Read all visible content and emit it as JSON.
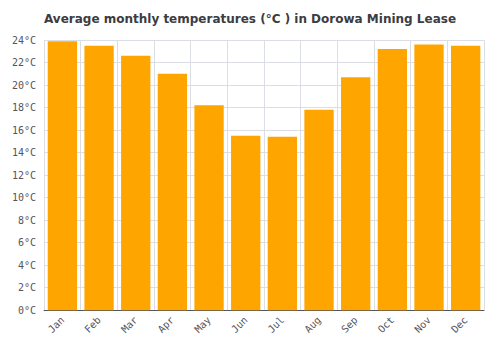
{
  "chart_data": {
    "type": "bar",
    "title": "Average monthly temperatures (°C ) in Dorowa Mining Lease",
    "categories": [
      "Jan",
      "Feb",
      "Mar",
      "Apr",
      "May",
      "Jun",
      "Jul",
      "Aug",
      "Sep",
      "Oct",
      "Nov",
      "Dec"
    ],
    "values": [
      23.9,
      23.5,
      22.6,
      21.0,
      18.2,
      15.5,
      15.4,
      17.8,
      20.7,
      23.2,
      23.6,
      23.5
    ],
    "color": "#FFA500",
    "ylim": [
      0,
      24
    ],
    "yticks": [
      {
        "value": 0,
        "label": "0°C"
      },
      {
        "value": 2,
        "label": "2°C"
      },
      {
        "value": 4,
        "label": "4°C"
      },
      {
        "value": 6,
        "label": "6°C"
      },
      {
        "value": 8,
        "label": "8°C"
      },
      {
        "value": 10,
        "label": "10°C"
      },
      {
        "value": 12,
        "label": "12°C"
      },
      {
        "value": 14,
        "label": "14°C"
      },
      {
        "value": 16,
        "label": "16°C"
      },
      {
        "value": 18,
        "label": "18°C"
      },
      {
        "value": 20,
        "label": "20°C"
      },
      {
        "value": 22,
        "label": "22°C"
      },
      {
        "value": 24,
        "label": "24°C"
      }
    ],
    "grid": true
  }
}
